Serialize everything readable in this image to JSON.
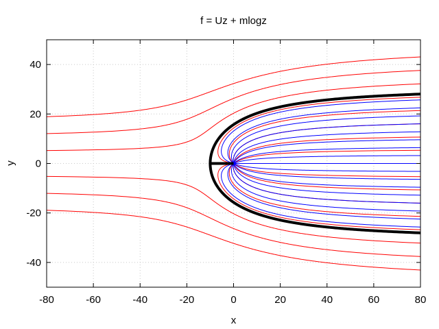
{
  "chart_data": {
    "type": "line",
    "title": "f = Uz + mlogz",
    "xlabel": "x",
    "ylabel": "y",
    "xlim": [
      -80,
      80
    ],
    "ylim": [
      -50,
      50
    ],
    "x_ticks": [
      -80,
      -60,
      -40,
      -20,
      0,
      20,
      40,
      60,
      80
    ],
    "y_ticks": [
      -40,
      -20,
      0,
      20,
      40
    ],
    "grid": true,
    "legend": "none",
    "flow": {
      "U": 1,
      "source_strength_m": 10,
      "stagnation_point": [
        -10,
        0
      ],
      "dividing_streamline_halfwidth_far": 31.4
    },
    "series": [
      {
        "role": "outer-streamlines",
        "color": "#ff0000",
        "psi_values": [
          -48,
          -42,
          -36,
          -30,
          -24,
          -18,
          -12,
          -6,
          6,
          12,
          18,
          24,
          30,
          36,
          42,
          48
        ]
      },
      {
        "role": "inner-streamlines",
        "color": "#0000ff",
        "psi_values": [
          -28.8,
          -25.2,
          -21.6,
          -18,
          -14.4,
          -10.8,
          -7.2,
          -3.6,
          0,
          3.6,
          7.2,
          10.8,
          14.4,
          18,
          21.6,
          25.2,
          28.8
        ]
      },
      {
        "role": "dividing-streamline",
        "color": "#000000",
        "psi_values": [
          31.4159
        ]
      }
    ]
  }
}
